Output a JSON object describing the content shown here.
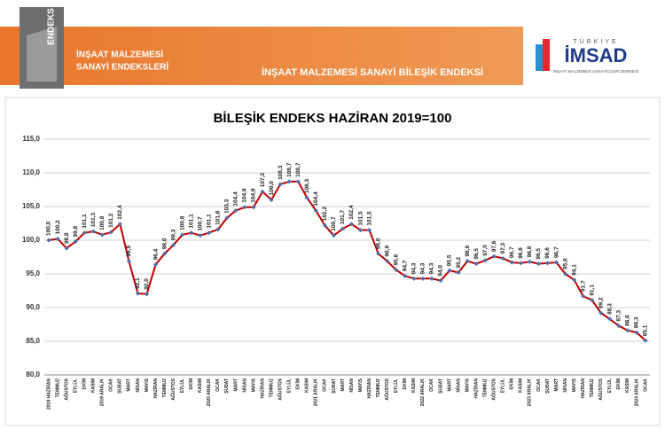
{
  "header": {
    "logo_text": "ENDEKS",
    "left_title_1": "İNŞAAT MALZEMESİ",
    "left_title_2": "SANAYİ ENDEKSLERİ",
    "center_title": "İNŞAAT MALZEMESİ SANAYİ BİLEŞİK ENDEKSİ",
    "brand_top": "TÜRKİYE",
    "brand": "İMSAD",
    "brand_sub": "İNŞAAT MALZEMESİ SANAYİCİLERİ DERNEĞİ"
  },
  "chart_data": {
    "type": "line",
    "title": "BİLEŞİK ENDEKS HAZİRAN 2019=100",
    "categories": [
      "2019 HAZİRAN",
      "TEMMUZ",
      "AĞUSTOS",
      "EYLÜL",
      "EKİM",
      "KASIM",
      "2019 ARALIK",
      "OCAK",
      "ŞUBAT",
      "MART",
      "NİSAN",
      "MAYIS",
      "HAZİRAN",
      "TEMMUZ",
      "AĞUSTOS",
      "EYLÜL",
      "EKİM",
      "KASIM",
      "2020 ARALIK",
      "OCAK",
      "ŞUBAT",
      "MART",
      "NİSAN",
      "MAYIS",
      "HAZİRAN",
      "TEMMUZ",
      "AĞUSTOS",
      "EYLÜL",
      "EKİM",
      "KASIM",
      "2021 ARALIK",
      "OCAK",
      "ŞUBAT",
      "MART",
      "NİSAN",
      "MAYIS",
      "HAZİRAN",
      "TEMMUZ",
      "AĞUSTOS",
      "EYLÜL",
      "EKİM",
      "KASIM",
      "2022 ARALIK",
      "OCAK",
      "ŞUBAT",
      "MART",
      "NİSAN",
      "MAYIS",
      "HAZİRAN",
      "TEMMUZ",
      "AĞUSTOS",
      "EYLÜL",
      "EKİM",
      "KASIM",
      "2023 ARALIK",
      "OCAK",
      "ŞUBAT",
      "MART",
      "NİSAN",
      "MAYIS",
      "HAZİRAN",
      "TEMMUZ",
      "AĞUSTOS",
      "EYLÜL",
      "EKİM",
      "KASIM",
      "2024 ARALIK",
      "OCAK"
    ],
    "values": [
      100.0,
      100.2,
      98.8,
      99.8,
      101.1,
      101.3,
      100.8,
      101.2,
      102.4,
      96.9,
      92.1,
      92.0,
      96.4,
      98.0,
      99.3,
      100.8,
      101.1,
      100.7,
      101.1,
      101.6,
      103.3,
      104.4,
      104.9,
      104.9,
      107.2,
      106.0,
      108.3,
      108.7,
      108.7,
      106.3,
      104.4,
      102.2,
      100.7,
      101.7,
      102.4,
      101.5,
      101.5,
      98.0,
      96.9,
      95.6,
      94.7,
      94.3,
      94.3,
      94.3,
      94.0,
      95.5,
      95.2,
      96.9,
      96.5,
      97.0,
      97.6,
      97.3,
      96.7,
      96.6,
      96.8,
      96.5,
      96.6,
      96.7,
      95.0,
      94.1,
      91.7,
      91.1,
      89.2,
      88.3,
      87.3,
      86.6,
      86.3,
      85.1
    ],
    "value_labels": [
      "100,0",
      "100,2",
      "98,8",
      "99,8",
      "101,1",
      "101,3",
      "100,8",
      "101,2",
      "102,4",
      "96,9",
      "92,1",
      "92,0",
      "96,4",
      "98,0",
      "99,3",
      "100,8",
      "101,1",
      "100,7",
      "101,1",
      "101,6",
      "103,3",
      "104,4",
      "104,9",
      "104,9",
      "107,2",
      "106,0",
      "108,3",
      "108,7",
      "108,7",
      "106,3",
      "104,4",
      "102,2",
      "100,7",
      "101,7",
      "102,4",
      "101,5",
      "101,5",
      "98,0",
      "96,9",
      "95,6",
      "94,7",
      "94,3",
      "94,3",
      "94,3",
      "94,0",
      "95,5",
      "95,2",
      "96,9",
      "96,5",
      "97,0",
      "97,6",
      "97,3",
      "96,7",
      "96,6",
      "96,8",
      "96,5",
      "96,6",
      "96,7",
      "95,0",
      "94,1",
      "91,7",
      "91,1",
      "89,2",
      "88,3",
      "87,3",
      "86,6",
      "86,3",
      "85,1"
    ],
    "color": "#c00000",
    "marker_color": "#4f6fa8",
    "ylim": [
      80,
      115
    ],
    "yticks": [
      {
        "value": 80,
        "label": "80,0"
      },
      {
        "value": 85,
        "label": "85,0"
      },
      {
        "value": 90,
        "label": "90,0"
      },
      {
        "value": 95,
        "label": "95,0"
      },
      {
        "value": 100,
        "label": "100,0"
      },
      {
        "value": 105,
        "label": "105,0"
      },
      {
        "value": 110,
        "label": "110,0"
      },
      {
        "value": 115,
        "label": "115,0"
      }
    ],
    "grid": true
  }
}
